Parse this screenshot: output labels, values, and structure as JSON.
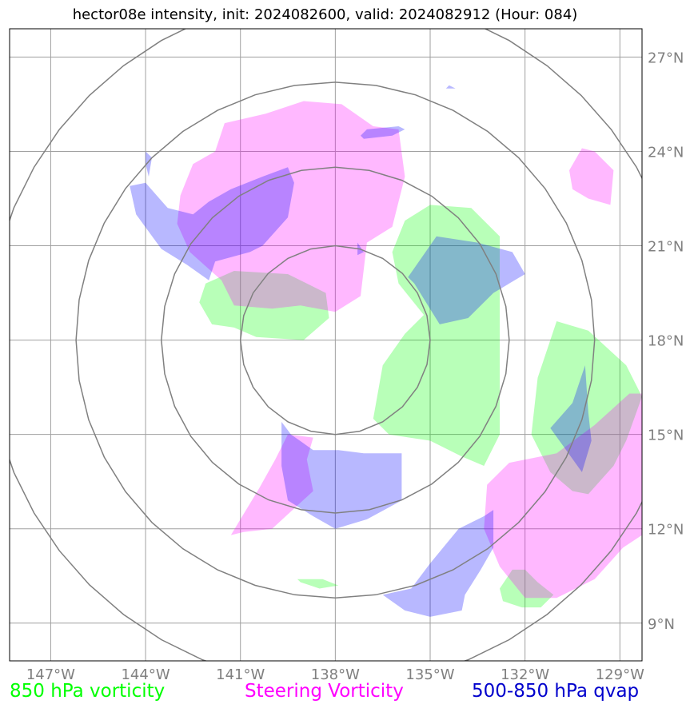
{
  "title": "hector08e intensity, init: 2024082600, valid: 2024082912 (Hour: 084)",
  "chart_data": {
    "type": "map",
    "title": "hector08e intensity, init: 2024082600, valid: 2024082912 (Hour: 084)",
    "lon_range": [
      -148.3,
      -128.3
    ],
    "lat_range": [
      7.8,
      27.9
    ],
    "lon_ticks": [
      -147,
      -144,
      -141,
      -138,
      -135,
      -132,
      -129
    ],
    "lon_tick_labels": [
      "147°W",
      "144°W",
      "141°W",
      "138°W",
      "135°W",
      "132°W",
      "129°W"
    ],
    "lat_ticks": [
      9,
      12,
      15,
      18,
      21,
      24,
      27
    ],
    "lat_tick_labels": [
      "9°N",
      "12°N",
      "15°N",
      "18°N",
      "21°N",
      "24°N",
      "27°N"
    ],
    "range_rings_center": [
      -138.0,
      18.0
    ],
    "range_ring_radii_deg": [
      3.0,
      5.5,
      8.2,
      11.0
    ],
    "grid": true,
    "series": [
      {
        "name": "850 hPa vorticity",
        "color": "#00ff00",
        "polygons": [
          [
            [
              -142.1,
              19.8
            ],
            [
              -141.2,
              20.2
            ],
            [
              -139.5,
              20.1
            ],
            [
              -138.3,
              19.5
            ],
            [
              -138.2,
              18.7
            ],
            [
              -139.0,
              18.0
            ],
            [
              -140.5,
              18.1
            ],
            [
              -141.2,
              18.4
            ],
            [
              -141.9,
              18.5
            ],
            [
              -142.3,
              19.2
            ]
          ],
          [
            [
              -135.0,
              22.3
            ],
            [
              -133.7,
              22.2
            ],
            [
              -132.8,
              21.3
            ],
            [
              -132.8,
              15.0
            ],
            [
              -133.3,
              14.0
            ],
            [
              -134.0,
              14.3
            ],
            [
              -135.0,
              14.8
            ],
            [
              -136.3,
              15.0
            ],
            [
              -136.8,
              15.5
            ],
            [
              -136.5,
              17.2
            ],
            [
              -135.8,
              18.2
            ],
            [
              -135.2,
              18.8
            ],
            [
              -136.0,
              19.8
            ],
            [
              -136.2,
              20.8
            ],
            [
              -135.8,
              21.8
            ]
          ],
          [
            [
              -131.0,
              18.6
            ],
            [
              -130.0,
              18.3
            ],
            [
              -128.8,
              17.2
            ],
            [
              -128.3,
              16.2
            ],
            [
              -128.8,
              14.8
            ],
            [
              -129.2,
              14.0
            ],
            [
              -130.0,
              13.1
            ],
            [
              -130.5,
              13.2
            ],
            [
              -131.2,
              13.8
            ],
            [
              -131.8,
              15.0
            ],
            [
              -131.6,
              16.8
            ]
          ],
          [
            [
              -132.0,
              10.7
            ],
            [
              -131.6,
              10.3
            ],
            [
              -131.1,
              9.9
            ],
            [
              -131.5,
              9.5
            ],
            [
              -132.1,
              9.5
            ],
            [
              -132.7,
              9.7
            ],
            [
              -132.8,
              10.1
            ],
            [
              -132.4,
              10.7
            ]
          ],
          [
            [
              -139.2,
              10.4
            ],
            [
              -138.4,
              10.4
            ],
            [
              -137.9,
              10.2
            ],
            [
              -138.5,
              10.1
            ],
            [
              -139.1,
              10.3
            ]
          ]
        ]
      },
      {
        "name": "Steering Vorticity",
        "color": "#ff00ff",
        "polygons": [
          [
            [
              -140.2,
              25.2
            ],
            [
              -139.0,
              25.6
            ],
            [
              -137.8,
              25.5
            ],
            [
              -136.8,
              24.8
            ],
            [
              -136.0,
              24.7
            ],
            [
              -135.8,
              23.2
            ],
            [
              -136.2,
              21.6
            ],
            [
              -137.0,
              21.1
            ],
            [
              -137.2,
              19.4
            ],
            [
              -138.0,
              18.9
            ],
            [
              -139.1,
              19.1
            ],
            [
              -140.0,
              19.0
            ],
            [
              -141.2,
              19.1
            ],
            [
              -141.6,
              19.9
            ],
            [
              -142.6,
              20.8
            ],
            [
              -143.0,
              21.7
            ],
            [
              -142.9,
              22.6
            ],
            [
              -142.5,
              23.6
            ],
            [
              -141.8,
              24.0
            ],
            [
              -141.5,
              24.9
            ]
          ],
          [
            [
              -130.2,
              24.1
            ],
            [
              -129.8,
              24.0
            ],
            [
              -129.2,
              23.4
            ],
            [
              -129.3,
              22.3
            ],
            [
              -130.0,
              22.5
            ],
            [
              -130.5,
              22.8
            ],
            [
              -130.6,
              23.4
            ]
          ],
          [
            [
              -139.5,
              15.0
            ],
            [
              -138.7,
              14.9
            ],
            [
              -138.9,
              14.2
            ],
            [
              -138.7,
              13.2
            ],
            [
              -140.0,
              12.0
            ],
            [
              -140.9,
              11.9
            ],
            [
              -141.3,
              11.8
            ],
            [
              -141.0,
              12.3
            ],
            [
              -140.4,
              13.3
            ],
            [
              -139.9,
              14.2
            ]
          ],
          [
            [
              -132.5,
              14.1
            ],
            [
              -131.0,
              14.4
            ],
            [
              -129.8,
              15.3
            ],
            [
              -128.7,
              16.3
            ],
            [
              -128.3,
              16.3
            ],
            [
              -128.3,
              11.8
            ],
            [
              -128.9,
              11.4
            ],
            [
              -129.8,
              10.4
            ],
            [
              -131.0,
              9.8
            ],
            [
              -132.0,
              9.8
            ],
            [
              -132.8,
              10.8
            ],
            [
              -133.3,
              12.0
            ],
            [
              -133.2,
              13.4
            ]
          ]
        ]
      },
      {
        "name": "500-850 hPa qvap",
        "color": "#0000ff",
        "polygons": [
          [
            [
              -143.5,
              20.9
            ],
            [
              -144.3,
              22.0
            ],
            [
              -144.5,
              22.9
            ],
            [
              -144.0,
              23.0
            ],
            [
              -143.3,
              22.2
            ],
            [
              -142.5,
              22.0
            ],
            [
              -142.0,
              22.4
            ],
            [
              -141.3,
              22.8
            ],
            [
              -140.3,
              23.2
            ],
            [
              -139.5,
              23.5
            ],
            [
              -139.3,
              23.0
            ],
            [
              -139.5,
              21.9
            ],
            [
              -140.3,
              21.0
            ],
            [
              -140.7,
              20.8
            ],
            [
              -141.8,
              20.5
            ],
            [
              -142.0,
              19.9
            ],
            [
              -142.7,
              20.4
            ]
          ],
          [
            [
              -137.0,
              24.7
            ],
            [
              -136.0,
              24.8
            ],
            [
              -135.8,
              24.7
            ],
            [
              -136.2,
              24.5
            ],
            [
              -137.1,
              24.4
            ],
            [
              -137.2,
              24.5
            ]
          ],
          [
            [
              -144.0,
              23.6
            ],
            [
              -143.9,
              23.2
            ],
            [
              -143.8,
              23.8
            ],
            [
              -144.0,
              24.0
            ]
          ],
          [
            [
              -134.5,
              26.0
            ],
            [
              -134.2,
              26.0
            ],
            [
              -134.4,
              26.1
            ]
          ],
          [
            [
              -134.8,
              21.3
            ],
            [
              -133.5,
              21.1
            ],
            [
              -132.4,
              20.8
            ],
            [
              -132.0,
              20.1
            ],
            [
              -133.0,
              19.5
            ],
            [
              -133.8,
              18.7
            ],
            [
              -134.7,
              18.5
            ],
            [
              -135.5,
              19.8
            ],
            [
              -135.7,
              20.0
            ]
          ],
          [
            [
              -137.3,
              21.1
            ],
            [
              -137.1,
              20.8
            ],
            [
              -137.3,
              20.7
            ]
          ],
          [
            [
              -139.7,
              15.4
            ],
            [
              -139.4,
              15.0
            ],
            [
              -138.7,
              14.5
            ],
            [
              -137.9,
              14.5
            ],
            [
              -137.1,
              14.4
            ],
            [
              -135.9,
              14.4
            ],
            [
              -135.9,
              12.9
            ],
            [
              -137.0,
              12.3
            ],
            [
              -138.0,
              12.0
            ],
            [
              -138.7,
              12.4
            ],
            [
              -139.5,
              12.9
            ],
            [
              -139.7,
              14.0
            ]
          ],
          [
            [
              -133.3,
              12.4
            ],
            [
              -133.0,
              12.6
            ],
            [
              -133.0,
              11.4
            ],
            [
              -133.4,
              10.7
            ],
            [
              -133.9,
              9.9
            ],
            [
              -134.0,
              9.4
            ],
            [
              -135.0,
              9.2
            ],
            [
              -135.8,
              9.4
            ],
            [
              -136.5,
              9.9
            ],
            [
              -135.6,
              10.1
            ],
            [
              -135.0,
              10.9
            ],
            [
              -134.1,
              12.0
            ]
          ],
          [
            [
              -130.1,
              17.2
            ],
            [
              -130.0,
              15.7
            ],
            [
              -129.9,
              14.8
            ],
            [
              -130.2,
              13.8
            ],
            [
              -130.7,
              14.5
            ],
            [
              -131.2,
              15.2
            ],
            [
              -130.5,
              16.0
            ]
          ]
        ]
      }
    ],
    "legend": [
      {
        "label": "850 hPa vorticity",
        "color": "#00ff00"
      },
      {
        "label": "Steering Vorticity",
        "color": "#ff00ff"
      },
      {
        "label": "500-850 hPa qvap",
        "color": "#0000ff"
      }
    ],
    "legend_placement": "bottom"
  }
}
